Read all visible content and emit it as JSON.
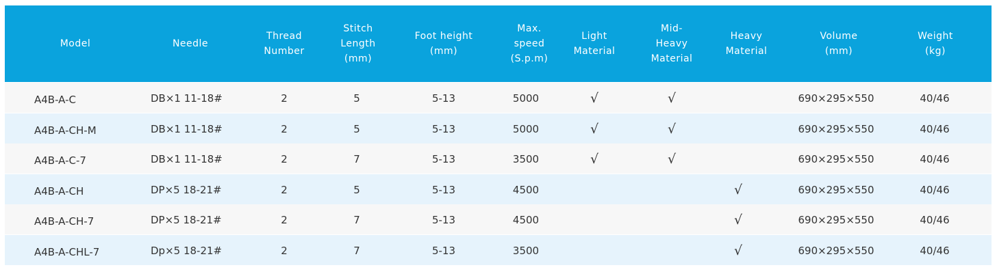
{
  "table": {
    "header": [
      [
        "Model"
      ],
      [
        "Needle"
      ],
      [
        "Thread",
        "Number"
      ],
      [
        "Stitch",
        "Length",
        "(mm)"
      ],
      [
        "Foot height",
        "(mm)"
      ],
      [
        "Max.",
        "speed",
        "(S.p.m)"
      ],
      [
        "Light",
        "Material"
      ],
      [
        "Mid-",
        "Heavy",
        "Material"
      ],
      [
        "Heavy",
        "Material"
      ],
      [
        "Volume",
        "(mm)"
      ],
      [
        "Weight",
        "(kg)"
      ]
    ],
    "rows": [
      [
        "A4B-A-C",
        "DB×1 11-18#",
        "2",
        "5",
        "5-13",
        "5000",
        "√",
        "√",
        null,
        "690×295×550",
        "40/46"
      ],
      [
        "A4B-A-CH-M",
        "DB×1 11-18#",
        "2",
        "5",
        "5-13",
        "5000",
        "√",
        "√",
        null,
        "690×295×550",
        "40/46"
      ],
      [
        "A4B-A-C-7",
        "DB×1 11-18#",
        "2",
        "7",
        "5-13",
        "3500",
        "√",
        "√",
        null,
        "690×295×550",
        "40/46"
      ],
      [
        "A4B-A-CH",
        "DP×5 18-21#",
        "2",
        "5",
        "5-13",
        "4500",
        null,
        null,
        "√",
        "690×295×550",
        "40/46"
      ],
      [
        "A4B-A-CH-7",
        "DP×5 18-21#",
        "2",
        "7",
        "5-13",
        "4500",
        null,
        null,
        "√",
        "690×295×550",
        "40/46"
      ],
      [
        "A4B-A-CHL-7",
        "Dp×5 18-21#",
        "2",
        "7",
        "5-13",
        "3500",
        null,
        null,
        "√",
        "690×295×550",
        "40/46"
      ]
    ]
  }
}
